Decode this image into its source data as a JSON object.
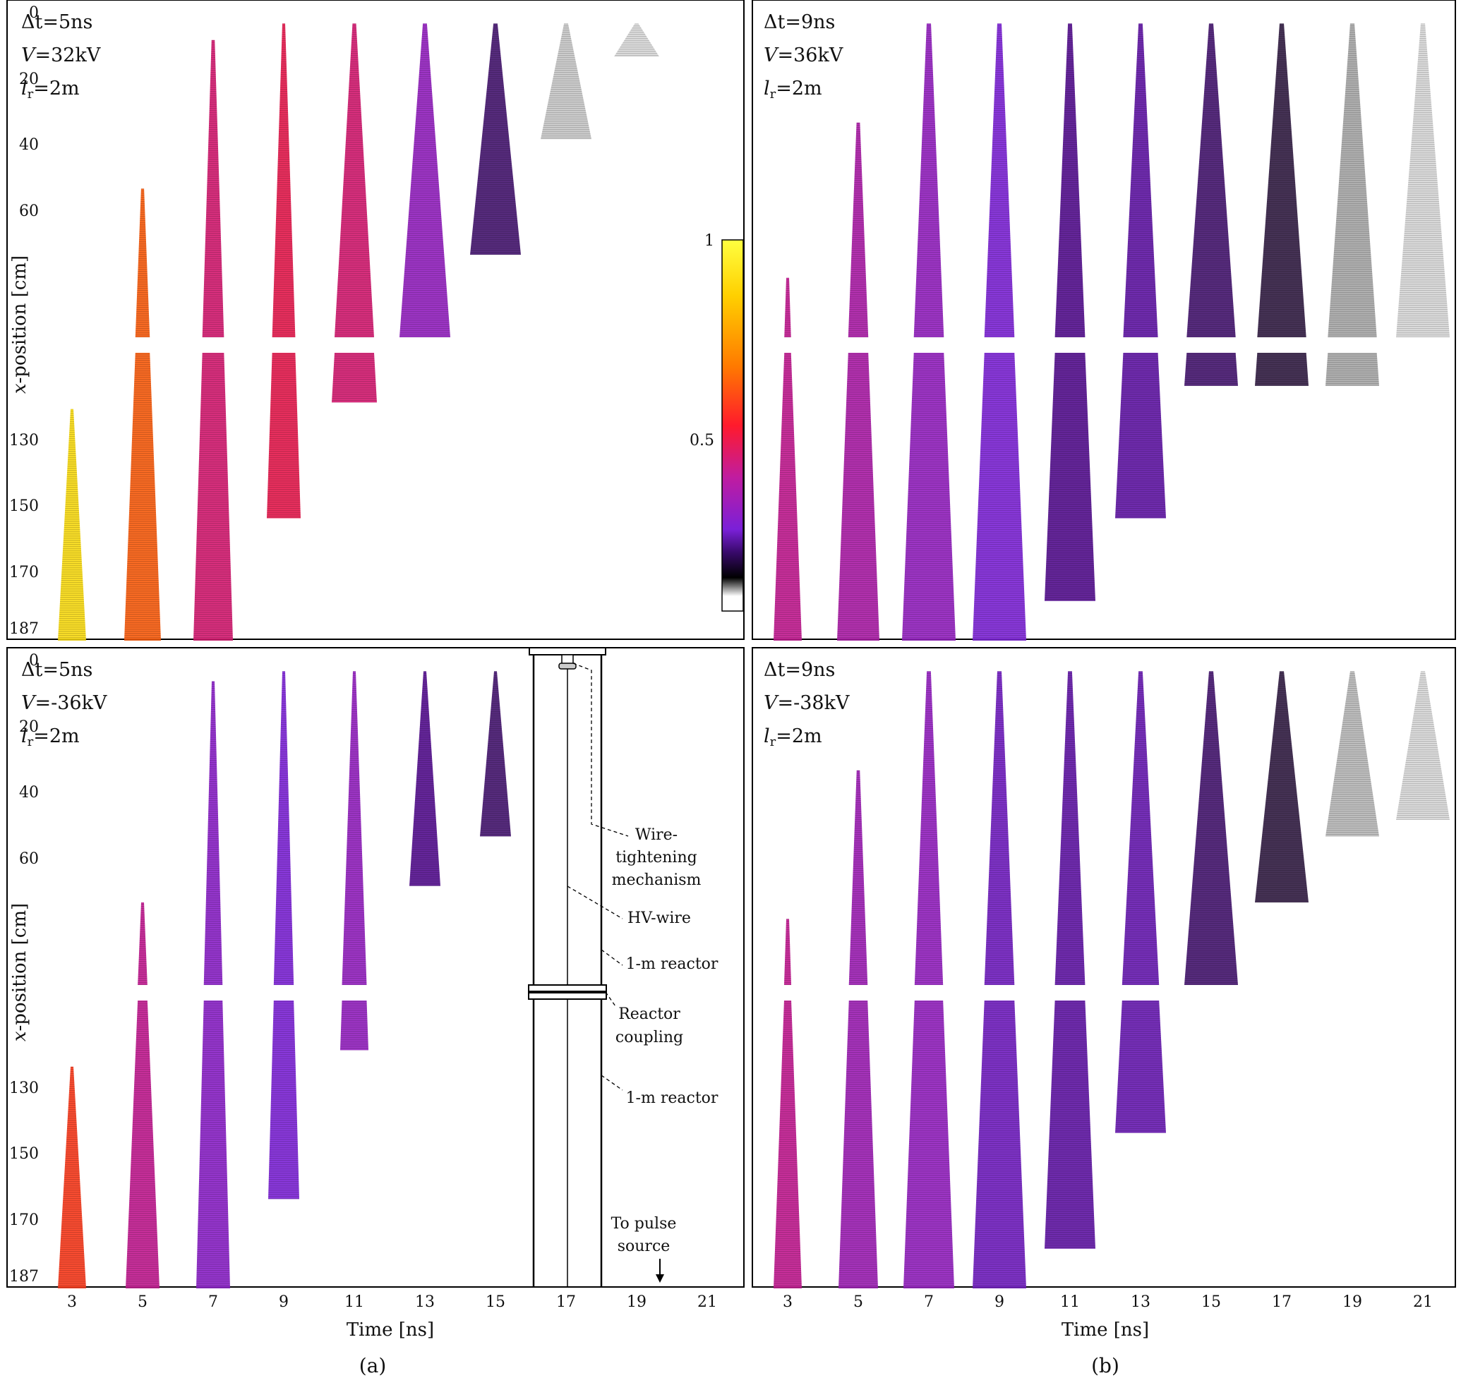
{
  "figure": {
    "caption_a": "(a)",
    "caption_b": "(b)"
  },
  "axes": {
    "ylabel_prefix": "x",
    "ylabel_suffix": "-position [cm]",
    "xlabel": "Time [ns]",
    "yticks": [
      "0",
      "20",
      "40",
      "60",
      "130",
      "150",
      "170",
      "187"
    ],
    "xticks": [
      "3",
      "5",
      "7",
      "9",
      "11",
      "13",
      "15",
      "17",
      "19",
      "21"
    ]
  },
  "colorbar": {
    "min_label": "",
    "mid_label": "0.5",
    "max_label": "1",
    "stops": [
      "#ffffff",
      "#000000",
      "#3a0a6e",
      "#7a20d8",
      "#d0208a",
      "#ff1a2c",
      "#ff8a00",
      "#ffe600",
      "#ffff40"
    ]
  },
  "reactor": {
    "wire_label": [
      "Wire-",
      "tightening",
      "mechanism"
    ],
    "hv_label": "HV-wire",
    "upper_reactor_label": "1-m reactor",
    "coupling_label": [
      "Reactor",
      "coupling"
    ],
    "lower_reactor_label": "1-m reactor",
    "pulse_label": [
      "To pulse",
      "source"
    ]
  },
  "chart_data": [
    {
      "panel": "a-top",
      "type": "heatmap",
      "params": {
        "dt_sym": "Δt",
        "dt": "=5ns",
        "V_sym": "V",
        "V": "=32kV",
        "lr_sym": "l",
        "lr_sub": "r",
        "lr": "=2m"
      },
      "xlabel": "",
      "ylabel": "x-position [cm]",
      "xlim": [
        2,
        22
      ],
      "ylim": [
        0,
        187
      ],
      "streamers": [
        {
          "t": 3,
          "top": 117,
          "bottom": 187,
          "intensity": 0.9,
          "width": 0.5
        },
        {
          "t": 5,
          "top": 55,
          "bottom": 187,
          "intensity": 0.65,
          "width": 0.65
        },
        {
          "t": 7,
          "top": 10,
          "bottom": 187,
          "intensity": 0.45,
          "width": 0.7
        },
        {
          "t": 9,
          "top": 5,
          "bottom": 150,
          "intensity": 0.5,
          "width": 0.6
        },
        {
          "t": 11,
          "top": 5,
          "bottom": 115,
          "intensity": 0.45,
          "width": 0.8
        },
        {
          "t": 13,
          "top": 5,
          "bottom": 100,
          "intensity": 0.3,
          "width": 0.9
        },
        {
          "t": 15,
          "top": 5,
          "bottom": 75,
          "intensity": 0.12,
          "width": 0.9
        },
        {
          "t": 17,
          "top": 5,
          "bottom": 40,
          "intensity": 0.03,
          "width": 0.9
        },
        {
          "t": 19,
          "top": 5,
          "bottom": 15,
          "intensity": 0.02,
          "width": 0.8
        }
      ]
    },
    {
      "panel": "b-top",
      "type": "heatmap",
      "params": {
        "dt_sym": "Δt",
        "dt": "=9ns",
        "V_sym": "V",
        "V": "=36kV",
        "lr_sym": "l",
        "lr_sub": "r",
        "lr": "=2m"
      },
      "xlabel": "",
      "ylabel": "",
      "xlim": [
        2,
        22
      ],
      "ylim": [
        0,
        187
      ],
      "streamers": [
        {
          "t": 3,
          "top": 82,
          "bottom": 187,
          "intensity": 0.4,
          "width": 0.5
        },
        {
          "t": 5,
          "top": 35,
          "bottom": 187,
          "intensity": 0.35,
          "width": 0.75
        },
        {
          "t": 7,
          "top": 5,
          "bottom": 187,
          "intensity": 0.3,
          "width": 0.95
        },
        {
          "t": 9,
          "top": 5,
          "bottom": 187,
          "intensity": 0.25,
          "width": 0.95
        },
        {
          "t": 11,
          "top": 5,
          "bottom": 175,
          "intensity": 0.15,
          "width": 0.9
        },
        {
          "t": 13,
          "top": 5,
          "bottom": 150,
          "intensity": 0.18,
          "width": 0.9
        },
        {
          "t": 15,
          "top": 5,
          "bottom": 110,
          "intensity": 0.12,
          "width": 0.95
        },
        {
          "t": 17,
          "top": 5,
          "bottom": 110,
          "intensity": 0.08,
          "width": 0.95
        },
        {
          "t": 19,
          "top": 5,
          "bottom": 110,
          "intensity": 0.05,
          "width": 0.95
        },
        {
          "t": 21,
          "top": 5,
          "bottom": 100,
          "intensity": 0.02,
          "width": 0.95
        }
      ]
    },
    {
      "panel": "a-bottom",
      "type": "heatmap",
      "params": {
        "dt_sym": "Δt",
        "dt": "=5ns",
        "V_sym": "V",
        "V": "=-36kV",
        "lr_sym": "l",
        "lr_sub": "r",
        "lr": "=2m"
      },
      "xlabel": "Time [ns]",
      "ylabel": "x-position [cm]",
      "xlim": [
        2,
        22
      ],
      "ylim": [
        0,
        187
      ],
      "streamers": [
        {
          "t": 3,
          "top": 120,
          "bottom": 187,
          "intensity": 0.6,
          "width": 0.5
        },
        {
          "t": 5,
          "top": 75,
          "bottom": 187,
          "intensity": 0.4,
          "width": 0.6
        },
        {
          "t": 7,
          "top": 8,
          "bottom": 187,
          "intensity": 0.28,
          "width": 0.6
        },
        {
          "t": 9,
          "top": 5,
          "bottom": 160,
          "intensity": 0.25,
          "width": 0.55
        },
        {
          "t": 11,
          "top": 5,
          "bottom": 115,
          "intensity": 0.3,
          "width": 0.5
        },
        {
          "t": 13,
          "top": 5,
          "bottom": 70,
          "intensity": 0.15,
          "width": 0.55
        },
        {
          "t": 15,
          "top": 5,
          "bottom": 55,
          "intensity": 0.12,
          "width": 0.55
        }
      ]
    },
    {
      "panel": "b-bottom",
      "type": "heatmap",
      "params": {
        "dt_sym": "Δt",
        "dt": "=9ns",
        "V_sym": "V",
        "V": "=-38kV",
        "lr_sym": "l",
        "lr_sub": "r",
        "lr": "=2m"
      },
      "xlabel": "Time [ns]",
      "ylabel": "",
      "xlim": [
        2,
        22
      ],
      "ylim": [
        0,
        187
      ],
      "streamers": [
        {
          "t": 3,
          "top": 80,
          "bottom": 187,
          "intensity": 0.4,
          "width": 0.5
        },
        {
          "t": 5,
          "top": 35,
          "bottom": 187,
          "intensity": 0.32,
          "width": 0.7
        },
        {
          "t": 7,
          "top": 5,
          "bottom": 187,
          "intensity": 0.3,
          "width": 0.9
        },
        {
          "t": 9,
          "top": 5,
          "bottom": 187,
          "intensity": 0.22,
          "width": 0.95
        },
        {
          "t": 11,
          "top": 5,
          "bottom": 175,
          "intensity": 0.18,
          "width": 0.9
        },
        {
          "t": 13,
          "top": 5,
          "bottom": 140,
          "intensity": 0.2,
          "width": 0.9
        },
        {
          "t": 15,
          "top": 5,
          "bottom": 100,
          "intensity": 0.12,
          "width": 0.95
        },
        {
          "t": 17,
          "top": 5,
          "bottom": 75,
          "intensity": 0.08,
          "width": 0.95
        },
        {
          "t": 19,
          "top": 5,
          "bottom": 55,
          "intensity": 0.04,
          "width": 0.95
        },
        {
          "t": 21,
          "top": 5,
          "bottom": 50,
          "intensity": 0.02,
          "width": 0.95
        }
      ]
    }
  ]
}
